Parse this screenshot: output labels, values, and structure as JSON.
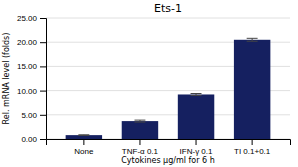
{
  "chart_data": {
    "type": "bar",
    "title": "Ets-1",
    "categories": [
      "None",
      "TNF-α 0.1",
      "IFN-γ 0.1",
      "TI 0.1+0.1"
    ],
    "values": [
      0.8,
      3.7,
      9.2,
      20.5
    ],
    "errors": [
      0.07,
      0.2,
      0.2,
      0.3
    ],
    "color": "#152060",
    "xlabel": "Cytokines μg/ml for 6 h",
    "ylabel": "Rel. mRNA level (folds)",
    "ylim": [
      0,
      25
    ],
    "yticks": [
      {
        "value": 0.0,
        "label": "0.00"
      },
      {
        "value": 5.0,
        "label": "5.00"
      },
      {
        "value": 10.0,
        "label": "10.00"
      },
      {
        "value": 15.0,
        "label": "15.00"
      },
      {
        "value": 20.0,
        "label": "20.00"
      },
      {
        "value": 25.0,
        "label": "25.00"
      }
    ],
    "grid": true
  }
}
